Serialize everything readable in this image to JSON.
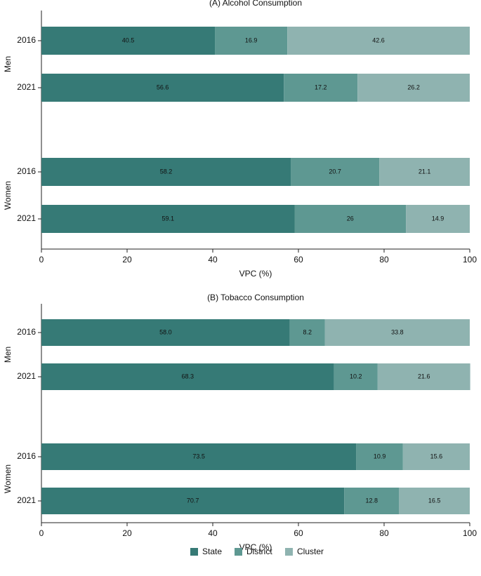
{
  "chart_data": [
    {
      "type": "stacked-bar-horizontal",
      "title": "(A) Alcohol Consumption",
      "x_label": "VPC (%)",
      "group_labels": [
        "Men",
        "Women"
      ],
      "categories": [
        "2016",
        "2021",
        "2016",
        "2021"
      ],
      "series": [
        {
          "name": "State",
          "color": "#367a76",
          "values": [
            40.5,
            56.6,
            58.2,
            59.1
          ]
        },
        {
          "name": "District",
          "color": "#5e9892",
          "values": [
            16.9,
            17.2,
            20.7,
            26
          ]
        },
        {
          "name": "Cluster",
          "color": "#8fb3b0",
          "values": [
            42.6,
            26.2,
            21.1,
            14.9
          ]
        }
      ],
      "xlim": [
        0,
        100
      ],
      "xticks": [
        0,
        20,
        40,
        60,
        80,
        100
      ]
    },
    {
      "type": "stacked-bar-horizontal",
      "title": "(B) Tobacco Consumption",
      "x_label": "VPC (%)",
      "group_labels": [
        "Men",
        "Women"
      ],
      "categories": [
        "2016",
        "2021",
        "2016",
        "2021"
      ],
      "series": [
        {
          "color": "#367a76",
          "values": [
            58,
            68.3,
            73.5,
            70.7
          ],
          "value_labels": [
            "58.0",
            "68.3",
            "73.5",
            "70.7"
          ]
        },
        {
          "color": "#5e9892",
          "values": [
            8.2,
            10.2,
            10.9,
            12.8
          ]
        },
        {
          "color": "#8fb3b0",
          "values": [
            33.8,
            21.6,
            15.6,
            16.5
          ]
        }
      ],
      "xlim": [
        0,
        100
      ],
      "xticks": [
        0,
        20,
        40,
        60,
        80,
        100
      ]
    }
  ]
}
